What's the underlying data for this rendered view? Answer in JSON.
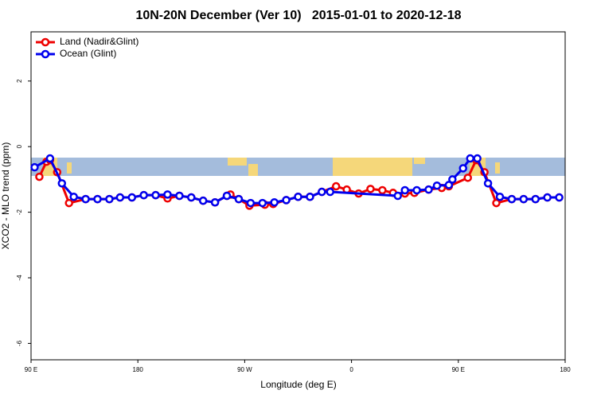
{
  "chart_data": {
    "type": "line",
    "title": "10N-20N December (Ver 10)   2015-01-01 to 2020-12-18",
    "xlabel": "Longitude (deg E)",
    "ylabel": "XCO2 - MLO trend (ppm)",
    "xlim": [
      90,
      540
    ],
    "ylim": [
      -6.5,
      3.5
    ],
    "xticks": [
      {
        "value": 90,
        "label": "90 E"
      },
      {
        "value": 180,
        "label": "180"
      },
      {
        "value": 270,
        "label": "90 W"
      },
      {
        "value": 360,
        "label": "0"
      },
      {
        "value": 450,
        "label": "90 E"
      },
      {
        "value": 540,
        "label": "180"
      }
    ],
    "yticks": [
      2,
      0,
      -2,
      -4,
      -6
    ],
    "legend": "top-left",
    "series": [
      {
        "name": "Land (Nadir&Glint)",
        "color": "#ee0000",
        "x": [
          97,
          103,
          106,
          112,
          122,
          136,
          146,
          156,
          165,
          175,
          185,
          195,
          205,
          215,
          225,
          235,
          245,
          255,
          258,
          265,
          274,
          287,
          294,
          305,
          315,
          325,
          335,
          347,
          356,
          366,
          376,
          386,
          395,
          405,
          413,
          425,
          436,
          442,
          458,
          465,
          472,
          482,
          495,
          505,
          515,
          525,
          535
        ],
        "values": [
          -0.92,
          -0.46,
          -0.41,
          -0.78,
          -1.72,
          -1.6,
          -1.6,
          -1.6,
          -1.55,
          -1.55,
          -1.48,
          -1.48,
          -1.58,
          -1.5,
          -1.55,
          -1.65,
          -1.7,
          -1.5,
          -1.46,
          -1.6,
          -1.8,
          -1.77,
          -1.75,
          -1.63,
          -1.53,
          -1.53,
          -1.38,
          -1.21,
          -1.31,
          -1.43,
          -1.29,
          -1.33,
          -1.41,
          -1.43,
          -1.41,
          -1.31,
          -1.26,
          -1.21,
          -0.95,
          -0.41,
          -0.78,
          -1.72,
          -1.6,
          -1.6,
          -1.6,
          -1.55,
          -1.55
        ]
      },
      {
        "name": "Ocean (Glint)",
        "color": "#0000ee",
        "x": [
          93,
          106,
          116,
          126,
          136,
          146,
          156,
          165,
          175,
          185,
          195,
          205,
          215,
          225,
          235,
          245,
          255,
          265,
          275,
          285,
          295,
          305,
          315,
          325,
          335,
          342,
          399,
          405,
          415,
          425,
          432,
          442,
          445,
          454,
          460,
          466,
          475,
          485,
          495,
          505,
          515,
          525,
          535
        ],
        "values": [
          -0.63,
          -0.36,
          -1.12,
          -1.53,
          -1.6,
          -1.6,
          -1.6,
          -1.55,
          -1.55,
          -1.48,
          -1.48,
          -1.46,
          -1.5,
          -1.55,
          -1.65,
          -1.7,
          -1.5,
          -1.6,
          -1.72,
          -1.72,
          -1.7,
          -1.63,
          -1.53,
          -1.53,
          -1.38,
          -1.38,
          -1.5,
          -1.33,
          -1.33,
          -1.31,
          -1.19,
          -1.17,
          -1.0,
          -0.66,
          -0.36,
          -0.36,
          -1.12,
          -1.53,
          -1.6,
          -1.6,
          -1.6,
          -1.55,
          -1.55
        ]
      }
    ]
  }
}
